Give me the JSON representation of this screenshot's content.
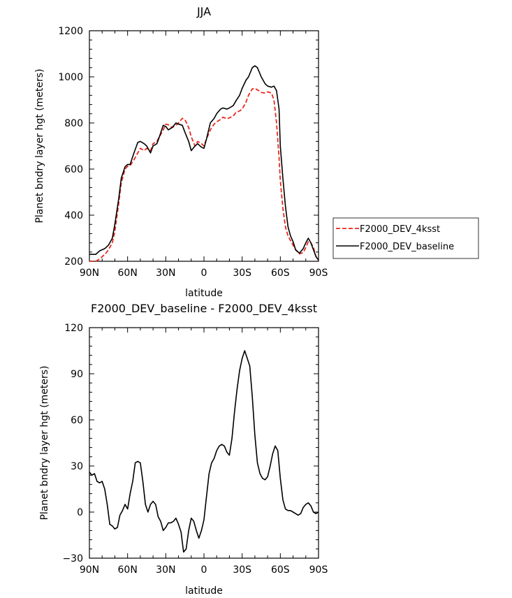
{
  "chart_data": [
    {
      "type": "line",
      "title": "JJA",
      "xlabel": "latitude",
      "ylabel": "Planet bndry layer hgt (meters)",
      "xlim": [
        90,
        -90
      ],
      "ylim": [
        200,
        1200
      ],
      "xticks": [
        90,
        60,
        30,
        0,
        -30,
        -60,
        -90
      ],
      "xtick_labels": [
        "90N",
        "60N",
        "30N",
        "0",
        "30S",
        "60S",
        "90S"
      ],
      "yticks": [
        200,
        400,
        600,
        800,
        1000,
        1200
      ],
      "ytick_labels": [
        "200",
        "400",
        "600",
        "800",
        "1000",
        "1200"
      ],
      "legend": [
        "F2000_DEV_4ksst",
        "F2000_DEV_baseline"
      ],
      "series": [
        {
          "name": "F2000_DEV_4ksst",
          "color": "#e8281e",
          "dash": "dashed",
          "lat": [
            90,
            85,
            82,
            80,
            77,
            75,
            72,
            70,
            67,
            65,
            62,
            60,
            58,
            55,
            52,
            50,
            47,
            45,
            42,
            40,
            37,
            35,
            32,
            30,
            28,
            25,
            22,
            20,
            17,
            15,
            12,
            10,
            7,
            5,
            2,
            0,
            -2,
            -5,
            -8,
            -10,
            -13,
            -15,
            -18,
            -20,
            -23,
            -25,
            -28,
            -30,
            -33,
            -35,
            -38,
            -40,
            -43,
            -45,
            -48,
            -50,
            -53,
            -55,
            -57,
            -59,
            -60,
            -62,
            -64,
            -66,
            -68,
            -70,
            -72,
            -75,
            -78,
            -80,
            -82,
            -84,
            -86,
            -88,
            -90
          ],
          "values": [
            200,
            200,
            210,
            220,
            235,
            250,
            280,
            330,
            450,
            540,
            600,
            612,
            615,
            640,
            670,
            690,
            680,
            690,
            680,
            710,
            720,
            740,
            770,
            795,
            792,
            780,
            790,
            800,
            820,
            815,
            780,
            740,
            700,
            720,
            710,
            700,
            730,
            770,
            795,
            805,
            815,
            825,
            818,
            822,
            830,
            845,
            852,
            860,
            890,
            920,
            948,
            950,
            940,
            932,
            930,
            935,
            930,
            900,
            800,
            650,
            550,
            430,
            350,
            310,
            290,
            270,
            250,
            232,
            238,
            260,
            285,
            280,
            260,
            220,
            205
          ]
        },
        {
          "name": "F2000_DEV_baseline",
          "color": "#000000",
          "dash": "solid",
          "lat": [
            90,
            87,
            85,
            82,
            80,
            78,
            75,
            72,
            70,
            67,
            65,
            62,
            60,
            58,
            55,
            52,
            50,
            47,
            45,
            42,
            40,
            37,
            35,
            32,
            30,
            28,
            25,
            22,
            20,
            17,
            15,
            12,
            10,
            7,
            5,
            2,
            0,
            -2,
            -5,
            -8,
            -10,
            -13,
            -15,
            -18,
            -20,
            -23,
            -25,
            -28,
            -30,
            -33,
            -35,
            -38,
            -40,
            -42,
            -45,
            -48,
            -50,
            -53,
            -55,
            -57,
            -59,
            -60,
            -62,
            -64,
            -66,
            -68,
            -70,
            -72,
            -75,
            -78,
            -80,
            -82,
            -84,
            -86,
            -88,
            -90
          ],
          "values": [
            230,
            230,
            230,
            245,
            250,
            255,
            270,
            300,
            360,
            470,
            560,
            610,
            620,
            620,
            670,
            715,
            720,
            710,
            700,
            670,
            700,
            710,
            740,
            790,
            785,
            770,
            780,
            800,
            795,
            790,
            760,
            720,
            680,
            700,
            710,
            695,
            690,
            730,
            800,
            820,
            840,
            860,
            865,
            860,
            865,
            875,
            895,
            920,
            950,
            985,
            1000,
            1040,
            1048,
            1040,
            1000,
            970,
            960,
            955,
            960,
            940,
            860,
            700,
            560,
            440,
            350,
            310,
            285,
            250,
            235,
            255,
            280,
            300,
            280,
            250,
            220,
            205
          ]
        }
      ]
    },
    {
      "type": "line",
      "title": "F2000_DEV_baseline - F2000_DEV_4ksst",
      "xlabel": "latitude",
      "ylabel": "Planet bndry layer hgt (meters)",
      "xlim": [
        90,
        -90
      ],
      "ylim": [
        -30,
        120
      ],
      "xticks": [
        90,
        60,
        30,
        0,
        -30,
        -60,
        -90
      ],
      "xtick_labels": [
        "90N",
        "60N",
        "30N",
        "0",
        "30S",
        "60S",
        "90S"
      ],
      "yticks": [
        -30,
        0,
        30,
        60,
        90,
        120
      ],
      "ytick_labels": [
        "−30",
        "0",
        "30",
        "60",
        "90",
        "120"
      ],
      "series": [
        {
          "name": "F2000_DEV_baseline - F2000_DEV_4ksst",
          "color": "#000000",
          "dash": "solid",
          "lat": [
            90,
            88,
            86,
            84,
            82,
            80,
            78,
            76,
            74,
            72,
            70,
            68,
            66,
            64,
            62,
            60,
            58,
            56,
            54,
            52,
            50,
            48,
            46,
            44,
            42,
            40,
            38,
            36,
            34,
            32,
            30,
            28,
            26,
            24,
            22,
            20,
            18,
            16,
            14,
            12,
            10,
            8,
            6,
            4,
            2,
            0,
            -2,
            -4,
            -6,
            -8,
            -10,
            -12,
            -14,
            -16,
            -18,
            -20,
            -22,
            -24,
            -26,
            -28,
            -30,
            -32,
            -34,
            -36,
            -38,
            -40,
            -42,
            -44,
            -46,
            -48,
            -50,
            -52,
            -54,
            -56,
            -58,
            -60,
            -62,
            -64,
            -66,
            -68,
            -70,
            -72,
            -74,
            -76,
            -78,
            -80,
            -82,
            -84,
            -86,
            -88,
            -90
          ],
          "values": [
            26,
            24,
            25,
            20,
            19,
            20,
            15,
            5,
            -8,
            -9,
            -11,
            -10,
            -2,
            1,
            5,
            2,
            12,
            20,
            32,
            33,
            32,
            20,
            5,
            0,
            5,
            7,
            5,
            -3,
            -6,
            -12,
            -10,
            -7,
            -7,
            -6,
            -4,
            -8,
            -13,
            -26,
            -24,
            -12,
            -4,
            -6,
            -12,
            -17,
            -12,
            -5,
            10,
            25,
            32,
            35,
            40,
            43,
            44,
            43,
            39,
            37,
            48,
            65,
            80,
            92,
            100,
            105,
            100,
            95,
            75,
            50,
            32,
            25,
            22,
            21,
            23,
            30,
            38,
            43,
            40,
            22,
            8,
            2,
            1,
            1,
            0,
            -1,
            -2,
            -1,
            3,
            5,
            6,
            4,
            0,
            -1,
            0
          ]
        }
      ]
    }
  ]
}
